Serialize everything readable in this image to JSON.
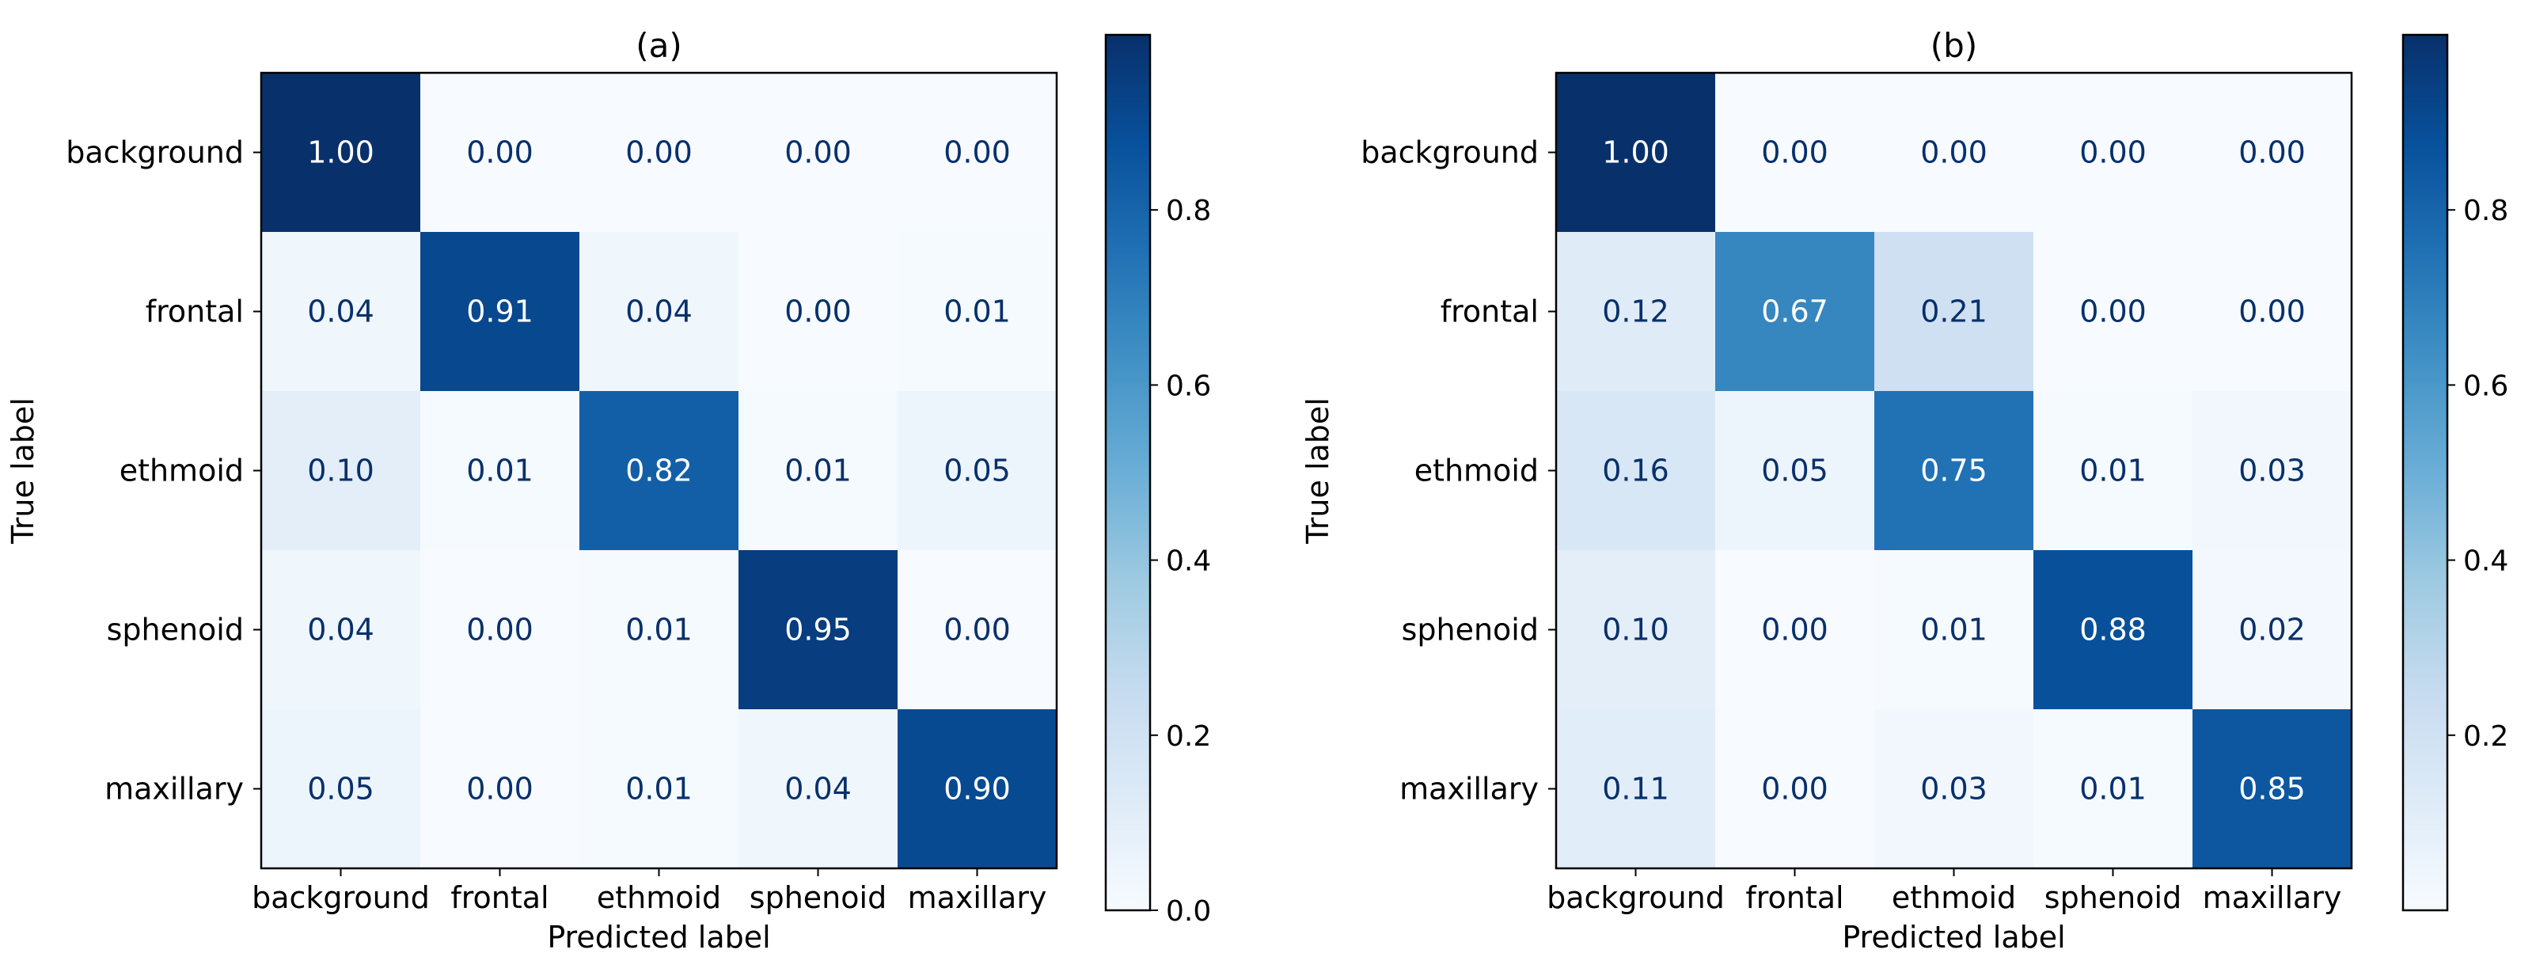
{
  "chart_data": [
    {
      "type": "heatmap",
      "title": "(a)",
      "xlabel": "Predicted label",
      "ylabel": "True label",
      "categories": [
        "background",
        "frontal",
        "ethmoid",
        "sphenoid",
        "maxillary"
      ],
      "values": [
        [
          1.0,
          0.0,
          0.0,
          0.0,
          0.0
        ],
        [
          0.04,
          0.91,
          0.04,
          0.0,
          0.01
        ],
        [
          0.1,
          0.01,
          0.82,
          0.01,
          0.05
        ],
        [
          0.04,
          0.0,
          0.01,
          0.95,
          0.0
        ],
        [
          0.05,
          0.0,
          0.01,
          0.04,
          0.9
        ]
      ],
      "colorbar": {
        "range": [
          0.0,
          1.0
        ],
        "ticks": [
          0.0,
          0.2,
          0.4,
          0.6,
          0.8
        ],
        "tick_labels": [
          "0.0",
          "0.2",
          "0.4",
          "0.6",
          "0.8"
        ]
      }
    },
    {
      "type": "heatmap",
      "title": "(b)",
      "xlabel": "Predicted label",
      "ylabel": "True label",
      "categories": [
        "background",
        "frontal",
        "ethmoid",
        "sphenoid",
        "maxillary"
      ],
      "values": [
        [
          1.0,
          0.0,
          0.0,
          0.0,
          0.0
        ],
        [
          0.12,
          0.67,
          0.21,
          0.0,
          0.0
        ],
        [
          0.16,
          0.05,
          0.75,
          0.01,
          0.03
        ],
        [
          0.1,
          0.0,
          0.01,
          0.88,
          0.02
        ],
        [
          0.11,
          0.0,
          0.03,
          0.01,
          0.85
        ]
      ],
      "colorbar": {
        "range": [
          0.0,
          1.0
        ],
        "ticks": [
          0.2,
          0.4,
          0.6,
          0.8
        ],
        "tick_labels": [
          "0.2",
          "0.4",
          "0.6",
          "0.8"
        ]
      }
    }
  ]
}
